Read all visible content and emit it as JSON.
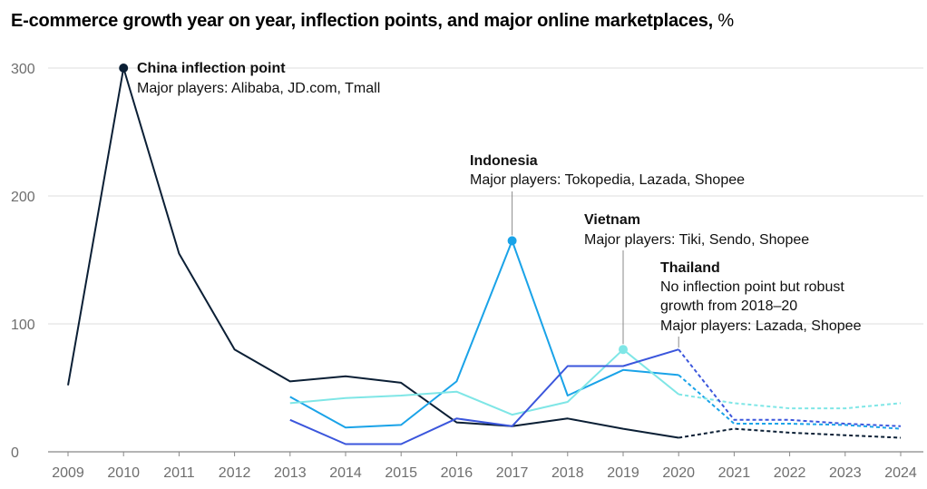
{
  "title": "E-commerce growth year on year, inflection points, and major online marketplaces,",
  "title_unit": "%",
  "chart_data": {
    "type": "line",
    "title": "E-commerce growth year on year, inflection points, and major online marketplaces, %",
    "xlabel": "",
    "ylabel": "",
    "x": [
      2009,
      2010,
      2011,
      2012,
      2013,
      2014,
      2015,
      2016,
      2017,
      2018,
      2019,
      2020,
      2021,
      2022,
      2023,
      2024
    ],
    "x_tick_labels": [
      "2009",
      "2010",
      "2011",
      "2012",
      "2013",
      "2014",
      "2015",
      "2016",
      "2017",
      "2018",
      "2019",
      "2020",
      "2021",
      "2022",
      "2023",
      "2024"
    ],
    "ylim": [
      0,
      300
    ],
    "y_ticks": [
      0,
      100,
      200,
      300
    ],
    "grid": "horizontal",
    "projection_start": 2020,
    "series": [
      {
        "color": "#0b1f35",
        "line_style": "solid until 2020, dashed after",
        "values": [
          52,
          300,
          155,
          80,
          55,
          59,
          54,
          23,
          20,
          26,
          18,
          11,
          18,
          15,
          13,
          11
        ]
      },
      {
        "color": "#1aa3e8",
        "line_style": "solid until 2020, dashed after",
        "values": [
          null,
          null,
          null,
          null,
          43,
          19,
          21,
          55,
          165,
          44,
          64,
          60,
          22,
          22,
          21,
          18
        ]
      },
      {
        "color": "#7fe6e6",
        "line_style": "solid until 2020, dashed after",
        "values": [
          null,
          null,
          null,
          null,
          38,
          42,
          44,
          47,
          29,
          39,
          80,
          45,
          38,
          34,
          34,
          38
        ]
      },
      {
        "color": "#3b56dc",
        "line_style": "solid until 2020, dashed after",
        "values": [
          null,
          null,
          null,
          null,
          25,
          6,
          6,
          26,
          20,
          67,
          67,
          80,
          25,
          25,
          22,
          20
        ]
      }
    ],
    "markers": [
      {
        "x": 2010,
        "y": 300,
        "color": "#0b1f35"
      },
      {
        "x": 2017,
        "y": 165,
        "color": "#1aa3e8"
      },
      {
        "x": 2019,
        "y": 80,
        "color": "#7fe6e6"
      }
    ],
    "annotations": [
      {
        "heading": "China inflection point",
        "lines": [
          "Major players: Alibaba, JD.com, Tmall"
        ]
      },
      {
        "heading": "Indonesia",
        "lines": [
          "Major players: Tokopedia, Lazada, Shopee"
        ]
      },
      {
        "heading": "Vietnam",
        "lines": [
          "Major players: Tiki, Sendo, Shopee"
        ]
      },
      {
        "heading": "Thailand",
        "lines": [
          "No inflection point but robust",
          "growth from 2018–20",
          "Major players: Lazada, Shopee"
        ]
      }
    ]
  }
}
